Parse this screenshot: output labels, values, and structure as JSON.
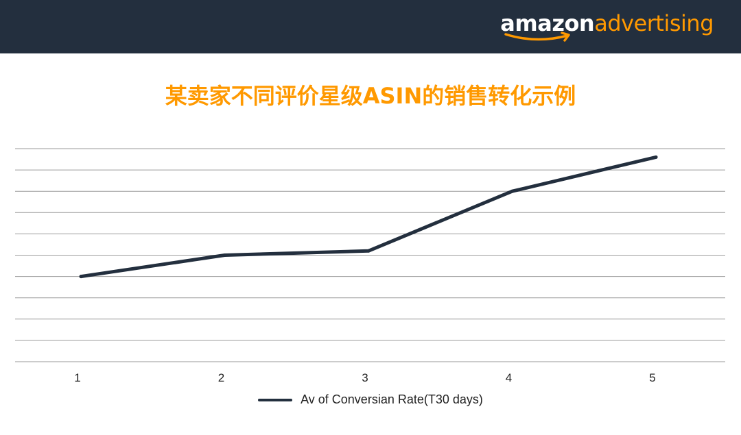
{
  "header": {
    "logo_part1": "amazon",
    "logo_part2": "advertising",
    "background_color": "#232f3e",
    "logo_accent_color": "#ff9900"
  },
  "chart_data": {
    "type": "line",
    "title": "某卖家不同评价星级ASIN的销售转化示例",
    "categories": [
      "1",
      "2",
      "3",
      "4",
      "5"
    ],
    "series": [
      {
        "name": "Av of Conversian Rate(T30 days)",
        "values": [
          3.0,
          4.0,
          4.2,
          7.0,
          8.6
        ],
        "color": "#232f3e"
      }
    ],
    "ylim": [
      -1,
      9
    ],
    "y_gridlines": [
      -1,
      0,
      1,
      2,
      3,
      4,
      5,
      6,
      7,
      8,
      9
    ],
    "y_tick_labels_shown": false,
    "grid": true,
    "legend_position": "bottom"
  }
}
